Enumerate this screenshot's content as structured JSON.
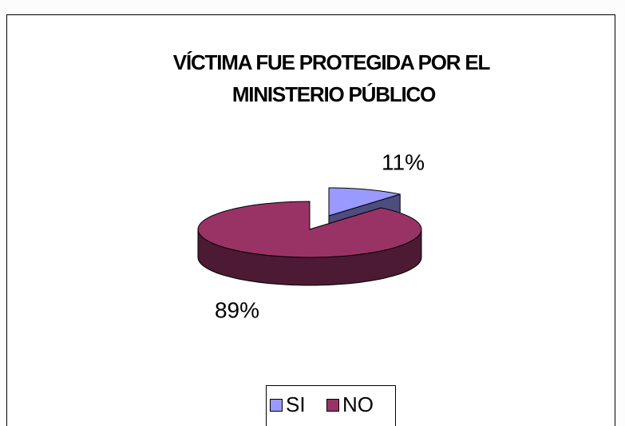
{
  "chart_data": {
    "type": "pie3d",
    "title": [
      "VÍCTIMA FUE PROTEGIDA POR EL",
      "MINISTERIO PÚBLICO"
    ],
    "categories": [
      "SI",
      "NO"
    ],
    "values": [
      11,
      89
    ],
    "value_labels": [
      "11%",
      "89%"
    ],
    "colors": [
      "#9999ff",
      "#993366"
    ],
    "legend": "bottom"
  }
}
